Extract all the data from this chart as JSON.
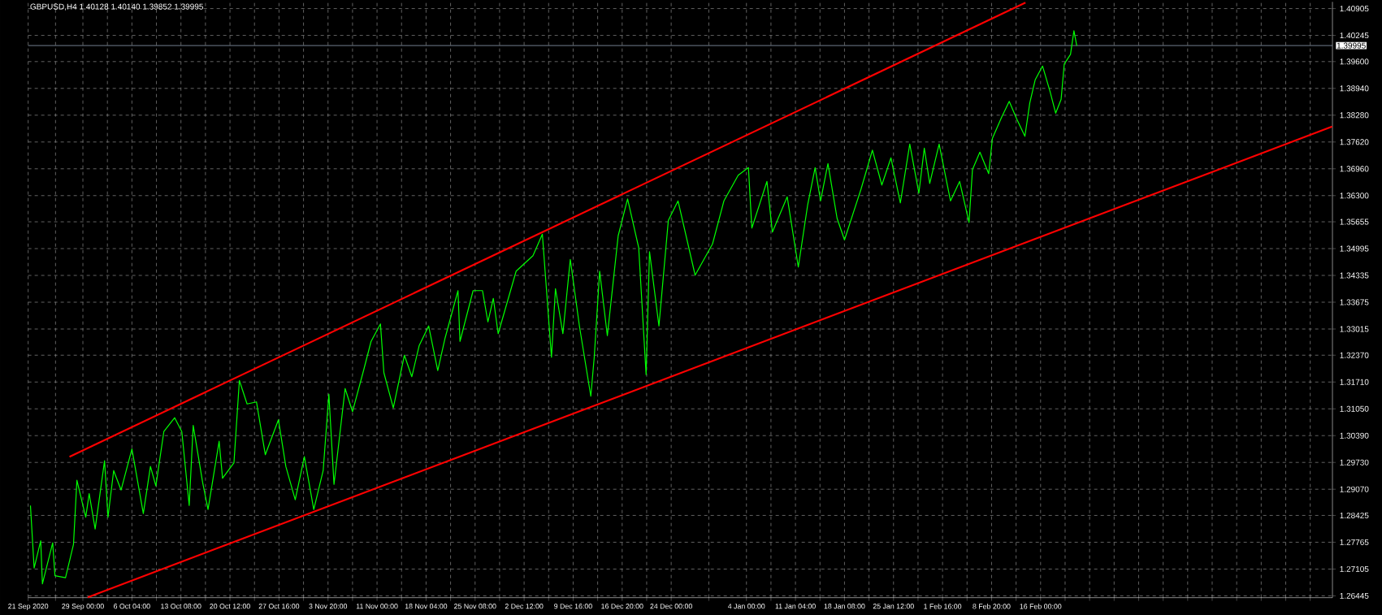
{
  "chart_data": {
    "type": "line",
    "title": "GBPUSD,H4  1.40128 1.40140 1.39852 1.39995",
    "series": [
      {
        "color": "#00ff00",
        "x": [
          "2020-09-21T08:00",
          "2020-09-21T21:00",
          "2020-09-22T20:00",
          "2020-09-23T02:00",
          "2020-09-24T14:00",
          "2020-09-24T22:00",
          "2020-09-26T11:00",
          "2020-09-27T15:00",
          "2020-09-28T03:00",
          "2020-09-29T10:00",
          "2020-09-29T22:00",
          "2020-09-30T19:00",
          "2020-10-02T04:00",
          "2020-10-02T16:00",
          "2020-10-03T12:00",
          "2020-10-04T14:00",
          "2020-10-06T04:00",
          "2020-10-07T20:00",
          "2020-10-08T21:00",
          "2020-10-09T16:00",
          "2020-10-10T20:00",
          "2020-10-12T10:00",
          "2020-10-13T11:00",
          "2020-10-14T13:00",
          "2020-10-15T03:00",
          "2020-10-16T12:00",
          "2020-10-17T07:00",
          "2020-10-18T22:00",
          "2020-10-19T10:00",
          "2020-10-21T02:00",
          "2020-10-21T21:00",
          "2020-10-23T00:00",
          "2020-10-24T09:00",
          "2020-10-25T16:00",
          "2020-10-27T14:00",
          "2020-10-28T16:00",
          "2020-10-30T01:00",
          "2020-10-31T09:00",
          "2020-11-01T18:00",
          "2020-11-03T03:00",
          "2020-11-03T23:00",
          "2020-11-04T17:00",
          "2020-11-06T08:00",
          "2020-11-07T10:00",
          "2020-11-09T02:00",
          "2020-11-10T03:00",
          "2020-11-11T12:00",
          "2020-11-12T00:00",
          "2020-11-13T09:00",
          "2020-11-15T00:00",
          "2020-11-16T02:00",
          "2020-11-17T04:00",
          "2020-11-18T13:00",
          "2020-11-19T21:00",
          "2020-11-20T23:00",
          "2020-11-22T20:00",
          "2020-11-23T03:00",
          "2020-11-25T01:00",
          "2020-11-26T10:00",
          "2020-11-27T05:00",
          "2020-11-28T00:00",
          "2020-11-28T17:00",
          "2020-12-01T08:00",
          "2020-12-03T19:00",
          "2020-12-05T04:00",
          "2020-12-06T12:00",
          "2020-12-07T02:00",
          "2020-12-08T04:00",
          "2020-12-09T06:00",
          "2020-12-10T14:00",
          "2020-12-12T06:00",
          "2020-12-12T18:00",
          "2020-12-13T13:00",
          "2020-12-14T16:00",
          "2020-12-16T06:00",
          "2020-12-17T15:00",
          "2020-12-19T06:00",
          "2020-12-20T08:00",
          "2020-12-20T20:00",
          "2020-12-22T05:00",
          "2020-12-23T14:00",
          "2020-12-25T00:00",
          "2020-12-27T12:00",
          "2020-12-30T01:00",
          "2020-12-31T17:00",
          "2021-01-02T19:00",
          "2021-01-04T07:00",
          "2021-01-04T19:00",
          "2021-01-07T00:00",
          "2021-01-07T19:00",
          "2021-01-09T23:00",
          "2021-01-11T14:00",
          "2021-01-12T23:00",
          "2021-01-14T01:00",
          "2021-01-14T20:00",
          "2021-01-15T22:00",
          "2021-01-17T06:00",
          "2021-01-18T08:00",
          "2021-01-20T18:00",
          "2021-01-22T10:00",
          "2021-01-23T19:00",
          "2021-01-25T03:00",
          "2021-01-26T12:00",
          "2021-01-27T21:00",
          "2021-01-29T05:00",
          "2021-01-30T00:00",
          "2021-01-30T19:00",
          "2021-02-01T04:00",
          "2021-02-02T20:00",
          "2021-02-04T04:00",
          "2021-02-05T13:00",
          "2021-02-06T01:00",
          "2021-02-07T03:00",
          "2021-02-08T10:00",
          "2021-02-08T23:00",
          "2021-02-10T08:00",
          "2021-02-11T10:00",
          "2021-02-12T12:00",
          "2021-02-13T17:00",
          "2021-02-14T10:00",
          "2021-02-15T05:00",
          "2021-02-16T07:00",
          "2021-02-17T09:00",
          "2021-02-18T05:00",
          "2021-02-19T00:00",
          "2021-02-19T11:00",
          "2021-02-20T09:00",
          "2021-02-20T21:00",
          "2021-02-21T07:00"
        ],
        "values": [
          1.2867,
          1.2713,
          1.278,
          1.2674,
          1.2775,
          1.2694,
          1.2689,
          1.2771,
          1.2929,
          1.2838,
          1.2896,
          1.2809,
          1.2977,
          1.2838,
          1.2953,
          1.2905,
          1.3006,
          1.2847,
          1.2963,
          1.2915,
          1.3049,
          1.3083,
          1.3049,
          1.2867,
          1.3064,
          1.2924,
          1.2857,
          1.3025,
          1.2934,
          1.2972,
          1.3175,
          1.3117,
          1.3122,
          1.2992,
          1.3078,
          1.2963,
          1.2881,
          1.2987,
          1.2857,
          1.2953,
          1.3141,
          1.2919,
          1.3155,
          1.3098,
          1.3203,
          1.3271,
          1.3314,
          1.3194,
          1.3107,
          1.3237,
          1.3184,
          1.3261,
          1.3309,
          1.3199,
          1.328,
          1.3396,
          1.3271,
          1.3396,
          1.3396,
          1.3319,
          1.3377,
          1.329,
          1.3444,
          1.3482,
          1.3535,
          1.3232,
          1.3401,
          1.329,
          1.3473,
          1.3309,
          1.3136,
          1.3232,
          1.3444,
          1.3285,
          1.3531,
          1.3622,
          1.3502,
          1.3189,
          1.3492,
          1.3309,
          1.3569,
          1.3617,
          1.3434,
          1.3511,
          1.3617,
          1.368,
          1.3699,
          1.355,
          1.3665,
          1.354,
          1.3627,
          1.3454,
          1.3608,
          1.3699,
          1.3617,
          1.3709,
          1.3574,
          1.3521,
          1.3646,
          1.3742,
          1.3656,
          1.3723,
          1.3612,
          1.3757,
          1.3636,
          1.3747,
          1.366,
          1.3757,
          1.3617,
          1.3665,
          1.3564,
          1.3694,
          1.3737,
          1.3684,
          1.3771,
          1.3824,
          1.3862,
          1.3819,
          1.3776,
          1.3858,
          1.3915,
          1.3949,
          1.3887,
          1.3833,
          1.3867,
          1.3954,
          1.3978,
          1.4036,
          1.3999
        ]
      },
      {
        "color": "#ff0000",
        "x": [
          "2020-09-27T01:00",
          "2021-02-13T19:00"
        ],
        "values": [
          1.2987,
          1.4105
        ]
      },
      {
        "color": "#ff0000",
        "x": [
          "2020-09-29T17:00",
          "2021-03-30T15:00"
        ],
        "values": [
          1.2641,
          1.38
        ]
      }
    ],
    "xlim": [
      "2020-09-21T00:00",
      "2021-03-30T16:00"
    ],
    "ylim": [
      1.264,
      1.4107
    ],
    "xticks": [
      {
        "value": "2020-09-21T00:00",
        "label": "21 Sep 2020"
      },
      {
        "value": "2020-09-25T00:00",
        "label": null
      },
      {
        "value": "2020-09-29T00:00",
        "label": "29 Sep 00:00"
      },
      {
        "value": "2020-10-02T14:00",
        "label": null
      },
      {
        "value": "2020-10-06T04:00",
        "label": "6 Oct 04:00"
      },
      {
        "value": "2020-10-09T18:00",
        "label": null
      },
      {
        "value": "2020-10-13T08:00",
        "label": "13 Oct 08:00"
      },
      {
        "value": "2020-10-16T22:00",
        "label": null
      },
      {
        "value": "2020-10-20T12:00",
        "label": "20 Oct 12:00"
      },
      {
        "value": "2020-10-24T02:00",
        "label": null
      },
      {
        "value": "2020-10-27T16:00",
        "label": "27 Oct 16:00"
      },
      {
        "value": "2020-10-31T06:00",
        "label": null
      },
      {
        "value": "2020-11-03T20:00",
        "label": "3 Nov 20:00"
      },
      {
        "value": "2020-11-07T10:00",
        "label": null
      },
      {
        "value": "2020-11-11T00:00",
        "label": "11 Nov 00:00"
      },
      {
        "value": "2020-11-14T14:00",
        "label": null
      },
      {
        "value": "2020-11-18T04:00",
        "label": "18 Nov 04:00"
      },
      {
        "value": "2020-11-21T18:00",
        "label": null
      },
      {
        "value": "2020-11-25T08:00",
        "label": "25 Nov 08:00"
      },
      {
        "value": "2020-11-28T22:00",
        "label": null
      },
      {
        "value": "2020-12-02T12:00",
        "label": "2 Dec 12:00"
      },
      {
        "value": "2020-12-06T02:00",
        "label": null
      },
      {
        "value": "2020-12-09T16:00",
        "label": "9 Dec 16:00"
      },
      {
        "value": "2020-12-13T06:00",
        "label": null
      },
      {
        "value": "2020-12-16T20:00",
        "label": "16 Dec 20:00"
      },
      {
        "value": "2020-12-20T10:00",
        "label": null
      },
      {
        "value": "2020-12-24T00:00",
        "label": "24 Dec 00:00"
      },
      {
        "value": "2020-12-29T12:00",
        "label": null
      },
      {
        "value": "2021-01-04T00:00",
        "label": "4 Jan 00:00"
      },
      {
        "value": "2021-01-07T14:00",
        "label": null
      },
      {
        "value": "2021-01-11T04:00",
        "label": "11 Jan 04:00"
      },
      {
        "value": "2021-01-14T18:00",
        "label": null
      },
      {
        "value": "2021-01-18T08:00",
        "label": "18 Jan 08:00"
      },
      {
        "value": "2021-01-21T22:00",
        "label": null
      },
      {
        "value": "2021-01-25T12:00",
        "label": "25 Jan 12:00"
      },
      {
        "value": "2021-01-29T02:00",
        "label": null
      },
      {
        "value": "2021-02-01T16:00",
        "label": "1 Feb 16:00"
      },
      {
        "value": "2021-02-05T06:00",
        "label": null
      },
      {
        "value": "2021-02-08T20:00",
        "label": "8 Feb 20:00"
      },
      {
        "value": "2021-02-12T10:00",
        "label": null
      },
      {
        "value": "2021-02-16T00:00",
        "label": "16 Feb 00:00"
      },
      {
        "value": "2021-02-19T14:00",
        "label": null
      },
      {
        "value": "2021-02-23T04:00",
        "label": null
      },
      {
        "value": "2021-02-26T18:00",
        "label": null
      },
      {
        "value": "2021-03-02T08:00",
        "label": null
      },
      {
        "value": "2021-03-05T22:00",
        "label": null
      },
      {
        "value": "2021-03-09T12:00",
        "label": null
      },
      {
        "value": "2021-03-13T02:00",
        "label": null
      },
      {
        "value": "2021-03-16T16:00",
        "label": null
      },
      {
        "value": "2021-03-20T06:00",
        "label": null
      },
      {
        "value": "2021-03-23T20:00",
        "label": null
      },
      {
        "value": "2021-03-27T10:00",
        "label": null
      }
    ],
    "yticks": [
      {
        "value": 1.26445,
        "label": "1.26445"
      },
      {
        "value": 1.27105,
        "label": "1.27105"
      },
      {
        "value": 1.27765,
        "label": "1.27765"
      },
      {
        "value": 1.28425,
        "label": "1.28425"
      },
      {
        "value": 1.2907,
        "label": "1.29070"
      },
      {
        "value": 1.2973,
        "label": "1.29730"
      },
      {
        "value": 1.3039,
        "label": "1.30390"
      },
      {
        "value": 1.3105,
        "label": "1.31050"
      },
      {
        "value": 1.3171,
        "label": "1.31710"
      },
      {
        "value": 1.3237,
        "label": "1.32370"
      },
      {
        "value": 1.33015,
        "label": "1.33015"
      },
      {
        "value": 1.33675,
        "label": "1.33675"
      },
      {
        "value": 1.34335,
        "label": "1.34335"
      },
      {
        "value": 1.34995,
        "label": "1.34995"
      },
      {
        "value": 1.35655,
        "label": "1.35655"
      },
      {
        "value": 1.363,
        "label": "1.36300"
      },
      {
        "value": 1.3696,
        "label": "1.36960"
      },
      {
        "value": 1.3762,
        "label": "1.37620"
      },
      {
        "value": 1.3828,
        "label": "1.38280"
      },
      {
        "value": 1.3894,
        "label": "1.38940"
      },
      {
        "value": 1.396,
        "label": "1.39600"
      },
      {
        "value": 1.40245,
        "label": "1.40245"
      },
      {
        "value": 1.40905,
        "label": "1.40905"
      }
    ],
    "grid": true,
    "ref_lines": [
      {
        "axis": "y",
        "value": 1.39995,
        "label": "1.39995",
        "color": "#8fa0b4"
      }
    ]
  }
}
